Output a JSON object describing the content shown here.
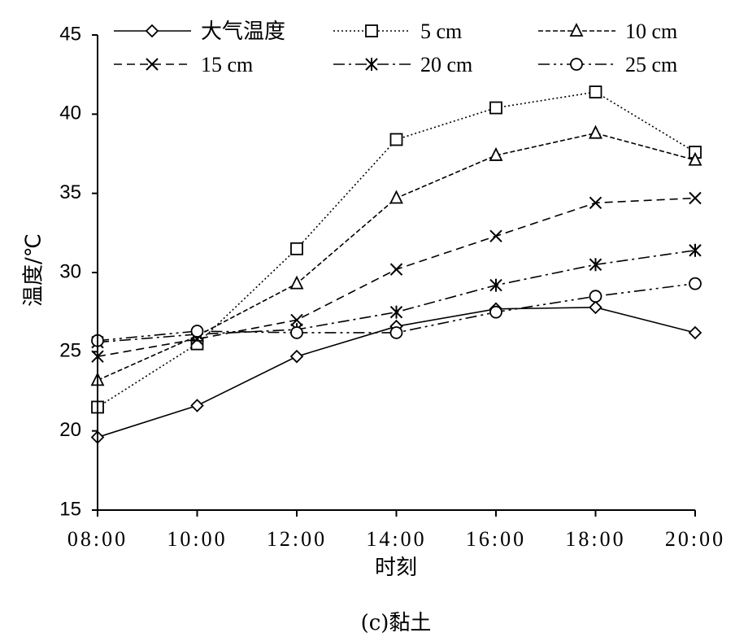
{
  "chart_data": {
    "type": "line",
    "title": "",
    "caption": "(c)黏土",
    "xlabel": "时刻",
    "ylabel": "温度/℃",
    "categories": [
      "08:00",
      "10:00",
      "12:00",
      "14:00",
      "16:00",
      "18:00",
      "20:00"
    ],
    "ylim": [
      15,
      45
    ],
    "yticks": [
      15,
      20,
      25,
      30,
      35,
      40,
      45
    ],
    "grid": false,
    "legend_position": "top",
    "series": [
      {
        "name": "大气温度",
        "marker": "diamond",
        "dash": "solid",
        "values": [
          19.6,
          21.6,
          24.7,
          26.6,
          27.7,
          27.8,
          26.2
        ]
      },
      {
        "name": "5 cm",
        "marker": "square",
        "dash": "dotted",
        "values": [
          21.5,
          25.5,
          31.5,
          38.4,
          40.4,
          41.4,
          37.6
        ]
      },
      {
        "name": "10 cm",
        "marker": "triangle",
        "dash": "dashed",
        "values": [
          23.2,
          26.0,
          29.3,
          34.7,
          37.4,
          38.8,
          37.1
        ]
      },
      {
        "name": "15 cm",
        "marker": "x",
        "dash": "longdash",
        "values": [
          24.7,
          25.8,
          27.0,
          30.2,
          32.3,
          34.4,
          34.7
        ]
      },
      {
        "name": "20 cm",
        "marker": "asterisk",
        "dash": "dashdot",
        "values": [
          25.6,
          26.1,
          26.4,
          27.5,
          29.2,
          30.5,
          31.4
        ]
      },
      {
        "name": "25 cm",
        "marker": "circle",
        "dash": "dashdotdot",
        "values": [
          25.7,
          26.3,
          26.2,
          26.2,
          27.5,
          28.5,
          29.3
        ]
      }
    ]
  }
}
